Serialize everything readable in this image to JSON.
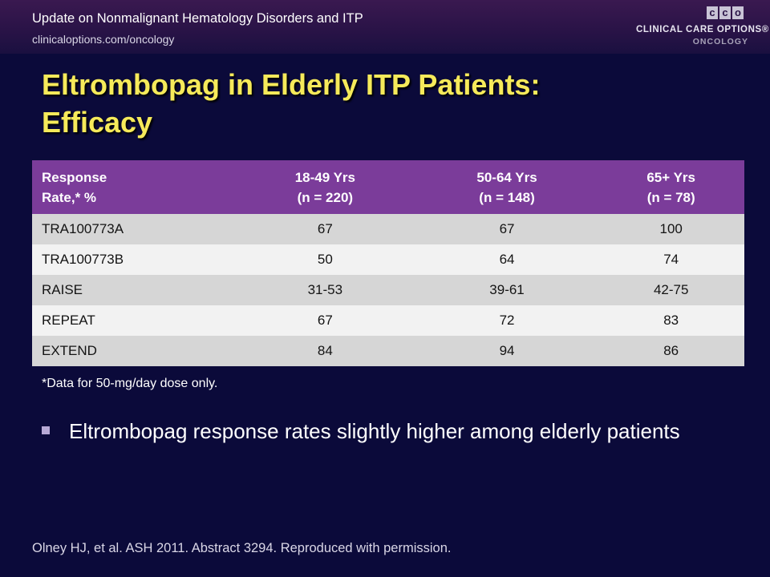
{
  "header": {
    "title": "Update on Nonmalignant Hematology Disorders and ITP",
    "url": "clinicaloptions.com/oncology",
    "logo": {
      "boxes": [
        "c",
        "c",
        "o"
      ],
      "line1": "CLINICAL CARE OPTIONS®",
      "line2": "ONCOLOGY"
    }
  },
  "slide": {
    "title_line1": "Eltrombopag in Elderly ITP Patients:",
    "title_line2": "Efficacy"
  },
  "table": {
    "header": [
      [
        "Response",
        "Rate,* %"
      ],
      [
        "18-49 Yrs",
        "(n = 220)"
      ],
      [
        "50-64 Yrs",
        "(n = 148)"
      ],
      [
        "65+ Yrs",
        "(n = 78)"
      ]
    ],
    "rows": [
      [
        "TRA100773A",
        "67",
        "67",
        "100"
      ],
      [
        "TRA100773B",
        "50",
        "64",
        "74"
      ],
      [
        "RAISE",
        "31-53",
        "39-61",
        "42-75"
      ],
      [
        "REPEAT",
        "67",
        "72",
        "83"
      ],
      [
        "EXTEND",
        "84",
        "94",
        "86"
      ]
    ]
  },
  "footnote": "*Data for 50-mg/day dose only.",
  "bullets": [
    "Eltrombopag response rates slightly higher among elderly patients"
  ],
  "citation": "Olney HJ, et al. ASH 2011. Abstract 3294. Reproduced with permission.",
  "colors": {
    "background": "#0b0a3a",
    "title": "#f6ea5a",
    "table_header": "#7b3c9a",
    "row_odd": "#d6d6d6",
    "row_even": "#f2f2f2"
  }
}
